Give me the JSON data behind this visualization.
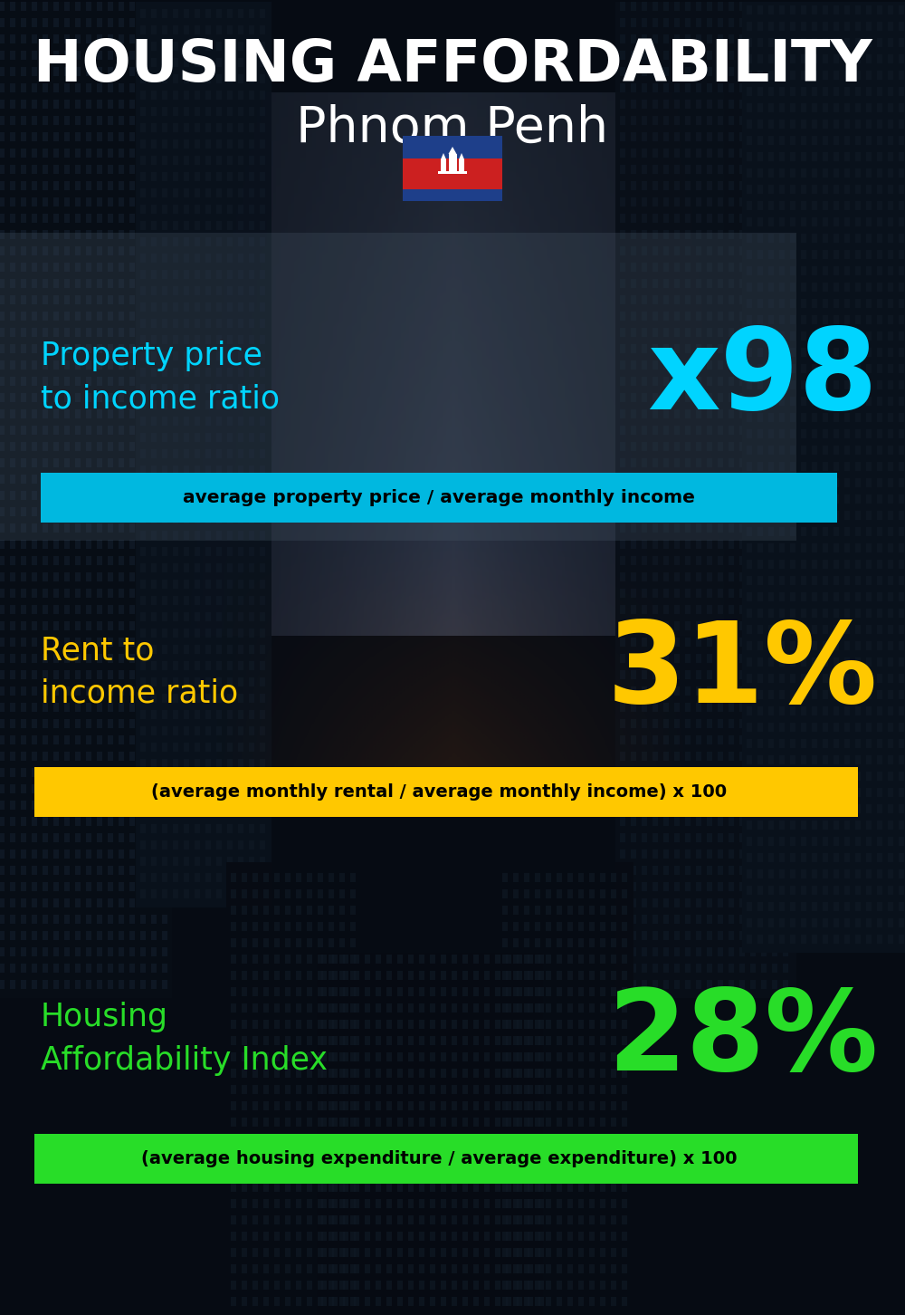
{
  "title_line1": "HOUSING AFFORDABILITY",
  "title_line2": "Phnom Penh",
  "bg_color": "#080e18",
  "section1_label": "Property price\nto income ratio",
  "section1_value": "x98",
  "section1_label_color": "#00d4ff",
  "section1_value_color": "#00d4ff",
  "section1_formula": "average property price / average monthly income",
  "section1_formula_bg": "#00b8e0",
  "section2_label": "Rent to\nincome ratio",
  "section2_value": "31%",
  "section2_label_color": "#ffc800",
  "section2_value_color": "#ffc800",
  "section2_formula": "(average monthly rental / average monthly income) x 100",
  "section2_formula_bg": "#ffc800",
  "section3_label": "Housing\nAffordability Index",
  "section3_value": "28%",
  "section3_label_color": "#28dd28",
  "section3_value_color": "#28dd28",
  "section3_formula": "(average housing expenditure / average expenditure) x 100",
  "section3_formula_bg": "#28dd28",
  "flag_blue": "#1e3f8a",
  "flag_red": "#cc2020",
  "flag_white": "#ffffff",
  "text_white": "#ffffff",
  "text_black": "#000000"
}
